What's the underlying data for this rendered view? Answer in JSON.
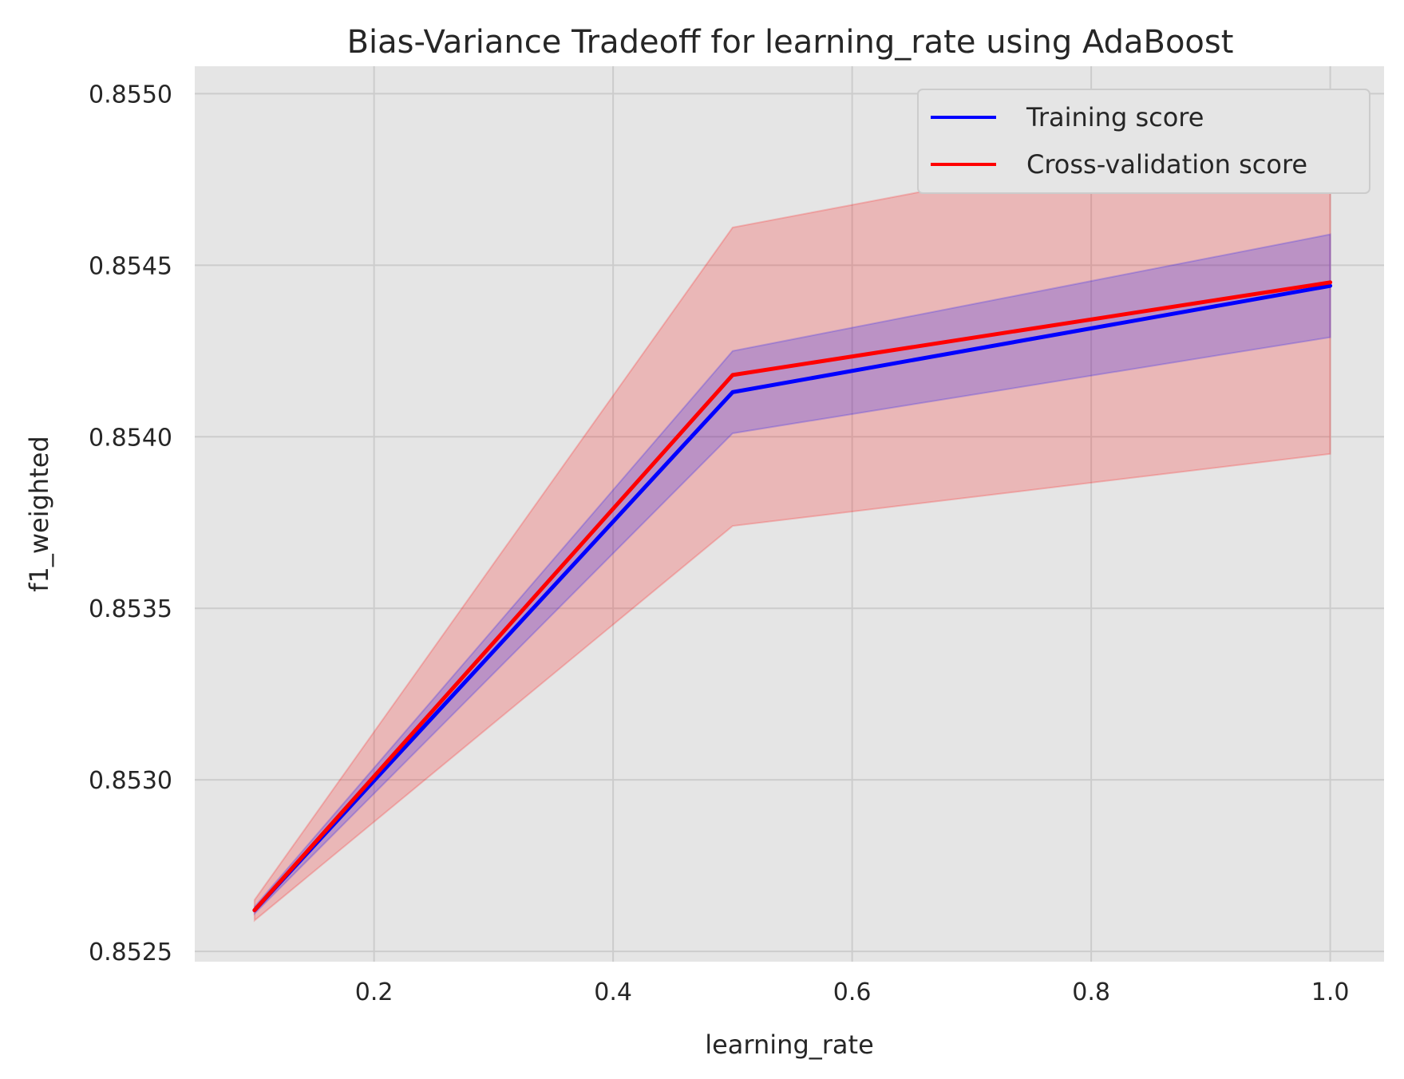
{
  "chart_data": {
    "type": "line",
    "title": "Bias-Variance Tradeoff for learning_rate using AdaBoost",
    "xlabel": "learning_rate",
    "ylabel": "f1_weighted",
    "xlim": [
      0.05,
      1.045
    ],
    "ylim": [
      0.85247,
      0.85508
    ],
    "x_ticks": [
      0.2,
      0.4,
      0.6,
      0.8,
      1.0
    ],
    "x_tick_labels": [
      "0.2",
      "0.4",
      "0.6",
      "0.8",
      "1.0"
    ],
    "y_ticks": [
      0.8525,
      0.853,
      0.8535,
      0.854,
      0.8545,
      0.855
    ],
    "y_tick_labels": [
      "0.8525",
      "0.8530",
      "0.8535",
      "0.8540",
      "0.8545",
      "0.8550"
    ],
    "grid": true,
    "background": "#e5e5e5",
    "legend_position": "upper right",
    "x": [
      0.1,
      0.5,
      1.0
    ],
    "series": [
      {
        "name": "Training score",
        "color": "#0000ff",
        "values": [
          0.85262,
          0.85413,
          0.85444
        ],
        "band_lower": [
          0.85261,
          0.85401,
          0.85429
        ],
        "band_upper": [
          0.85263,
          0.85425,
          0.85459
        ]
      },
      {
        "name": "Cross-validation score",
        "color": "#ff0000",
        "values": [
          0.85262,
          0.85418,
          0.85445
        ],
        "band_lower": [
          0.85259,
          0.85374,
          0.85395
        ],
        "band_upper": [
          0.85265,
          0.85461,
          0.85494
        ]
      }
    ]
  }
}
